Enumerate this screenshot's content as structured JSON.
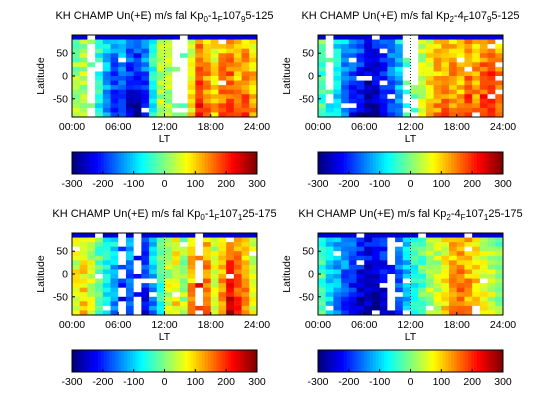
{
  "chart_data": [
    {
      "type": "heatmap",
      "title": "KH CHAMP Un(+E) m/s fal Kp",
      "title_parts": [
        "KH CHAMP Un(+E) m/s fal Kp",
        "0",
        "-1",
        "F",
        "107",
        "9",
        "5-125"
      ],
      "xlabel": "LT",
      "ylabel": "Latitude",
      "xticks": [
        "00:00",
        "06:00",
        "12:00",
        "18:00",
        "24:00"
      ],
      "yticks": [
        "50",
        "0",
        "-50"
      ],
      "xlim": [
        0,
        24
      ],
      "ylim": [
        -90,
        90
      ],
      "colorbar": {
        "ticks": [
          "-300",
          "-200",
          "-100",
          "0",
          "100",
          "200",
          "300"
        ],
        "range": [
          -300,
          300
        ]
      },
      "lt_profile": [
        10,
        30,
        20,
        -60,
        -120,
        -180,
        -160,
        -200,
        -220,
        -170,
        -60,
        20,
        30,
        0,
        -30,
        60,
        180,
        130,
        90,
        140,
        160,
        120,
        150,
        110
      ],
      "lat_gradient": 0.55,
      "white_gaps": [
        [
          2,
          3
        ],
        [
          13,
          15
        ]
      ]
    },
    {
      "type": "heatmap",
      "title": "KH CHAMP Un(+E) m/s fal Kp",
      "title_parts": [
        "KH CHAMP Un(+E) m/s fal Kp",
        "2",
        "-4",
        "F",
        "107",
        "9",
        "5-125"
      ],
      "xlabel": "LT",
      "ylabel": "Latitude",
      "xticks": [
        "00:00",
        "06:00",
        "12:00",
        "18:00",
        "24:00"
      ],
      "yticks": [
        "50",
        "0",
        "-50"
      ],
      "xlim": [
        0,
        24
      ],
      "ylim": [
        -90,
        90
      ],
      "colorbar": {
        "ticks": [
          "-300",
          "-200",
          "-100",
          "0",
          "100",
          "200",
          "300"
        ],
        "range": [
          -300,
          300
        ]
      },
      "lt_profile": [
        -30,
        -60,
        -90,
        -140,
        -190,
        -220,
        -250,
        -240,
        -210,
        -160,
        -110,
        -40,
        -20,
        40,
        80,
        120,
        140,
        130,
        110,
        160,
        130,
        170,
        190,
        140
      ],
      "lat_gradient": 0.4,
      "white_gaps": [
        [
          1,
          2
        ],
        [
          11,
          13
        ]
      ]
    },
    {
      "type": "heatmap",
      "title": "KH CHAMP Un(+E) m/s fal Kp",
      "title_parts": [
        "KH CHAMP Un(+E) m/s fal Kp",
        "0",
        "-1",
        "F",
        "107",
        "1",
        "25-175"
      ],
      "xlabel": "LT",
      "ylabel": "Latitude",
      "xticks": [
        "00:00",
        "06:00",
        "12:00",
        "18:00",
        "24:00"
      ],
      "yticks": [
        "50",
        "0",
        "-50"
      ],
      "xlim": [
        0,
        24
      ],
      "ylim": [
        -90,
        90
      ],
      "colorbar": {
        "ticks": [
          "-300",
          "-200",
          "-100",
          "0",
          "100",
          "200",
          "300"
        ],
        "range": [
          -300,
          300
        ]
      },
      "lt_profile": [
        60,
        80,
        50,
        -20,
        -70,
        -110,
        -190,
        -150,
        -230,
        -200,
        -120,
        -40,
        40,
        70,
        20,
        110,
        190,
        150,
        60,
        120,
        210,
        160,
        130,
        60
      ],
      "lat_gradient": 0.5,
      "white_gaps": [
        [
          6,
          7
        ],
        [
          8,
          9
        ],
        [
          16,
          17
        ]
      ]
    },
    {
      "type": "heatmap",
      "title": "KH CHAMP Un(+E) m/s fal Kp",
      "title_parts": [
        "KH CHAMP Un(+E) m/s fal Kp",
        "2",
        "-4",
        "F",
        "107",
        "1",
        "25-175"
      ],
      "xlabel": "LT",
      "ylabel": "Latitude",
      "xticks": [
        "00:00",
        "06:00",
        "12:00",
        "18:00",
        "24:00"
      ],
      "yticks": [
        "50",
        "0",
        "-50"
      ],
      "xlim": [
        0,
        24
      ],
      "ylim": [
        -90,
        90
      ],
      "colorbar": {
        "ticks": [
          "-300",
          "-200",
          "-100",
          "0",
          "100",
          "200",
          "300"
        ],
        "range": [
          -300,
          300
        ]
      },
      "lt_profile": [
        -40,
        -90,
        -120,
        -160,
        -200,
        -230,
        -250,
        -260,
        -230,
        -200,
        -160,
        -110,
        -60,
        -20,
        20,
        40,
        80,
        120,
        140,
        120,
        100,
        60,
        40,
        0
      ],
      "lat_gradient": 0.3,
      "white_gaps": [
        [
          9,
          10
        ]
      ]
    }
  ]
}
